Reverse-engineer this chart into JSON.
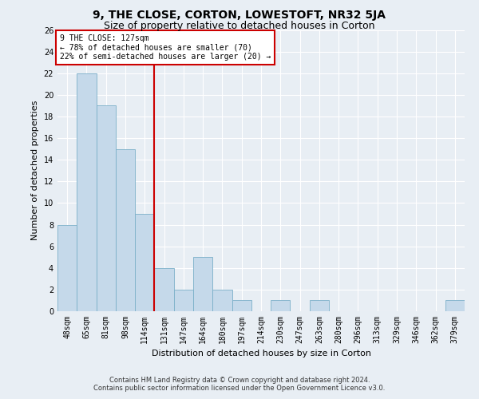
{
  "title": "9, THE CLOSE, CORTON, LOWESTOFT, NR32 5JA",
  "subtitle": "Size of property relative to detached houses in Corton",
  "xlabel": "Distribution of detached houses by size in Corton",
  "ylabel": "Number of detached properties",
  "categories": [
    "48sqm",
    "65sqm",
    "81sqm",
    "98sqm",
    "114sqm",
    "131sqm",
    "147sqm",
    "164sqm",
    "180sqm",
    "197sqm",
    "214sqm",
    "230sqm",
    "247sqm",
    "263sqm",
    "280sqm",
    "296sqm",
    "313sqm",
    "329sqm",
    "346sqm",
    "362sqm",
    "379sqm"
  ],
  "values": [
    8,
    22,
    19,
    15,
    9,
    4,
    2,
    5,
    2,
    1,
    0,
    1,
    0,
    1,
    0,
    0,
    0,
    0,
    0,
    0,
    1
  ],
  "bar_color": "#c5d9ea",
  "bar_edge_color": "#7aafc8",
  "vline_x": 4.5,
  "vline_color": "#cc0000",
  "annotation_text": "9 THE CLOSE: 127sqm\n← 78% of detached houses are smaller (70)\n22% of semi-detached houses are larger (20) →",
  "annotation_box_color": "#ffffff",
  "annotation_box_edge_color": "#cc0000",
  "ylim": [
    0,
    26
  ],
  "yticks": [
    0,
    2,
    4,
    6,
    8,
    10,
    12,
    14,
    16,
    18,
    20,
    22,
    24,
    26
  ],
  "footer_line1": "Contains HM Land Registry data © Crown copyright and database right 2024.",
  "footer_line2": "Contains public sector information licensed under the Open Government Licence v3.0.",
  "background_color": "#e8eef4",
  "grid_color": "#ffffff",
  "title_fontsize": 10,
  "subtitle_fontsize": 9,
  "tick_fontsize": 7,
  "label_fontsize": 8,
  "footer_fontsize": 6,
  "annotation_fontsize": 7
}
